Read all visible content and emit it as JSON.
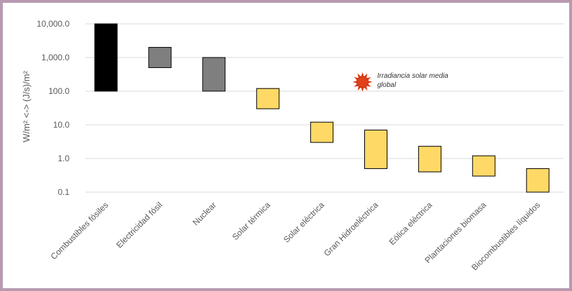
{
  "chart_data": {
    "type": "bar",
    "subtype": "floating-range",
    "title": "",
    "xlabel": "",
    "ylabel": "W/m² <-> (J/s)/m²",
    "yscale": "log",
    "ylim": [
      0.1,
      10000
    ],
    "yticks": [
      0.1,
      1,
      10,
      100,
      1000,
      10000
    ],
    "ytick_labels": [
      "0.1",
      "1.0",
      "10.0",
      "100.0",
      "1,000.0",
      "10,000.0"
    ],
    "grid": true,
    "categories": [
      "Combustibles fósiles",
      "Electricidad fósil",
      "Nuclear",
      "Solar térmica",
      "Solar eléctrica",
      "Gran Hidroeléctrica",
      "Eólica eléctrica",
      "Plantaciones biomasa",
      "Biocombustibles líquidos"
    ],
    "ranges": [
      [
        100,
        10000
      ],
      [
        500,
        2000
      ],
      [
        100,
        1000
      ],
      [
        30,
        120
      ],
      [
        3,
        12
      ],
      [
        0.5,
        7
      ],
      [
        0.4,
        2.3
      ],
      [
        0.3,
        1.2
      ],
      [
        0.1,
        0.5
      ]
    ],
    "colors": [
      "#000000",
      "#7f7f7f",
      "#7f7f7f",
      "#ffd966",
      "#ffd966",
      "#ffd966",
      "#ffd966",
      "#ffd966",
      "#ffd966"
    ],
    "annotation": {
      "lines": [
        "Irradiancia solar media",
        "global"
      ],
      "value": 170,
      "after_category_index": 5,
      "icon": "sun-icon",
      "icon_color": "#e2401a"
    }
  }
}
